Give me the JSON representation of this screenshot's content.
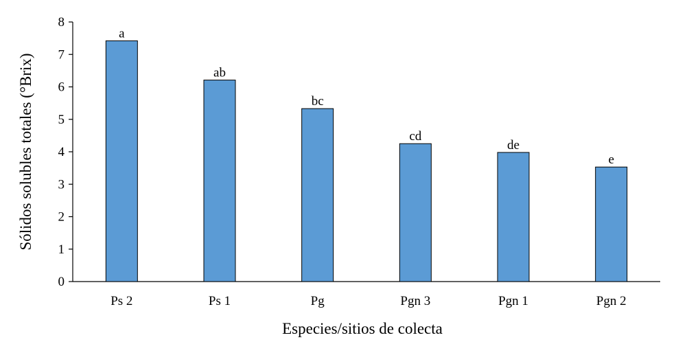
{
  "chart_data": {
    "type": "bar",
    "title": "",
    "xlabel": "Especies/sitios de colecta",
    "ylabel": "Sólidos solubles totales (°Brix)",
    "categories": [
      "Ps 2",
      "Ps 1",
      "Pg",
      "Pgn 3",
      "Pgn 1",
      "Pgn 2"
    ],
    "values": [
      7.42,
      6.21,
      5.33,
      4.25,
      3.98,
      3.53
    ],
    "bar_labels": [
      "a",
      "ab",
      "bc",
      "cd",
      "de",
      "e"
    ],
    "yticks": [
      "0",
      "1",
      "2",
      "3",
      "4",
      "5",
      "6",
      "7",
      "8"
    ],
    "ylim": [
      0,
      8
    ],
    "grid": false,
    "legend": "none",
    "bar_color": "#5b9bd5"
  }
}
